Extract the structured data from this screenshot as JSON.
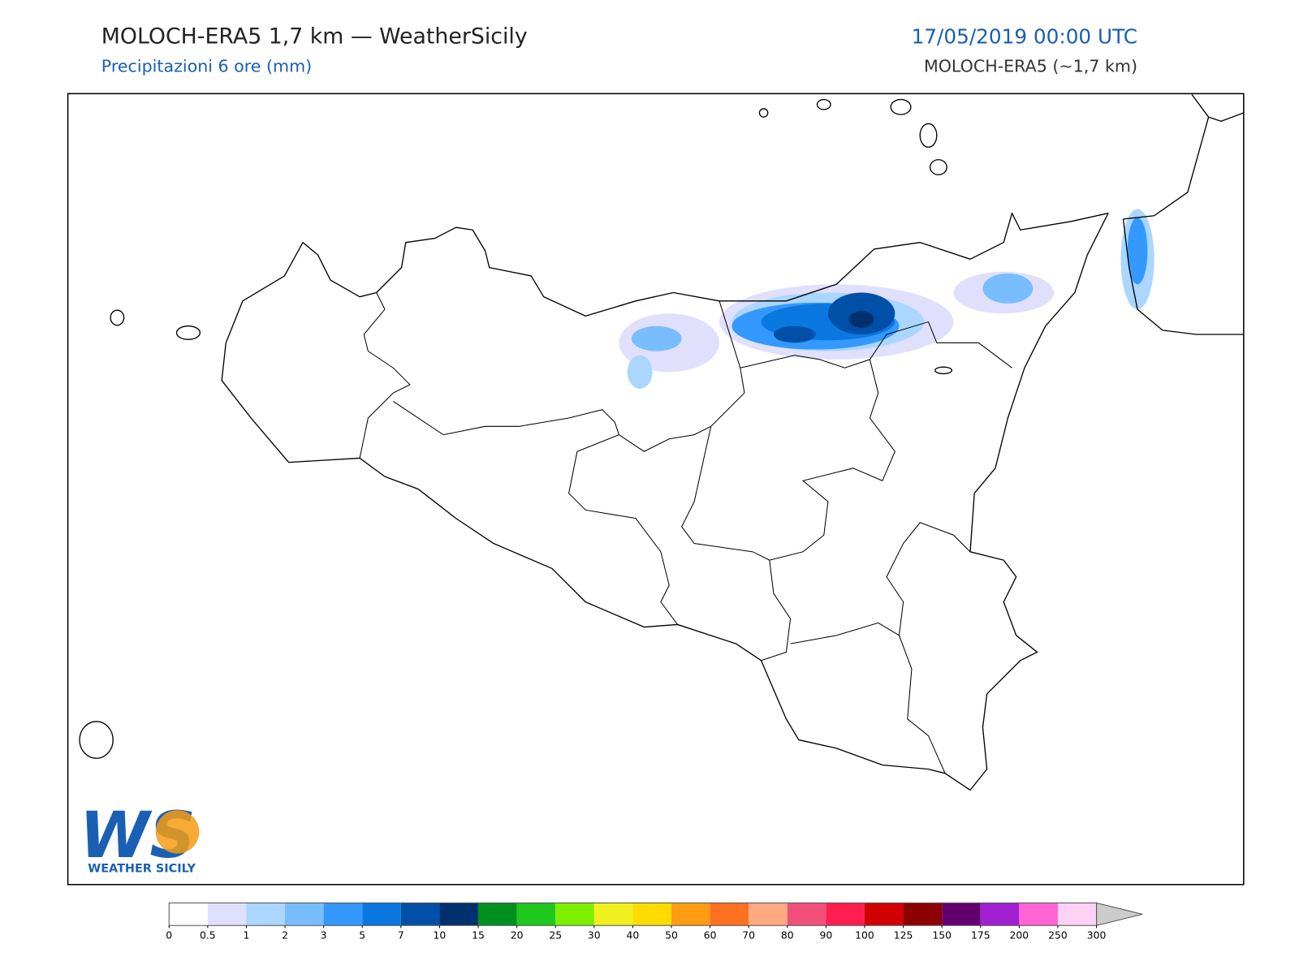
{
  "header": {
    "title": "MOLOCH-ERA5 1,7 km — WeatherSicily",
    "subtitle": "Precipitazioni 6 ore (mm)",
    "date": "17/05/2019 00:00 UTC",
    "model": "MOLOCH-ERA5 (~1,7 km)"
  },
  "logo": {
    "mark": "WS",
    "name": "WEATHER SICILY"
  },
  "colorbar": {
    "ticks": [
      0,
      0.5,
      1,
      2,
      3,
      5,
      7,
      10,
      15,
      20,
      25,
      30,
      40,
      50,
      60,
      70,
      80,
      90,
      100,
      125,
      150,
      175,
      200,
      250,
      300
    ],
    "colors": [
      "#ffffff",
      "#e0e0fc",
      "#aad6ff",
      "#78bdff",
      "#3399ff",
      "#0a78e0",
      "#0050a8",
      "#00306e",
      "#009020",
      "#1ec81e",
      "#7cf000",
      "#f0f01e",
      "#ffdc00",
      "#ff9c14",
      "#ff7020",
      "#ffaa82",
      "#f0507a",
      "#ff1e50",
      "#d20000",
      "#8c0000",
      "#64006e",
      "#a020d2",
      "#ff64d2",
      "#ffd2f5"
    ],
    "over_color": "#cccccc"
  }
}
